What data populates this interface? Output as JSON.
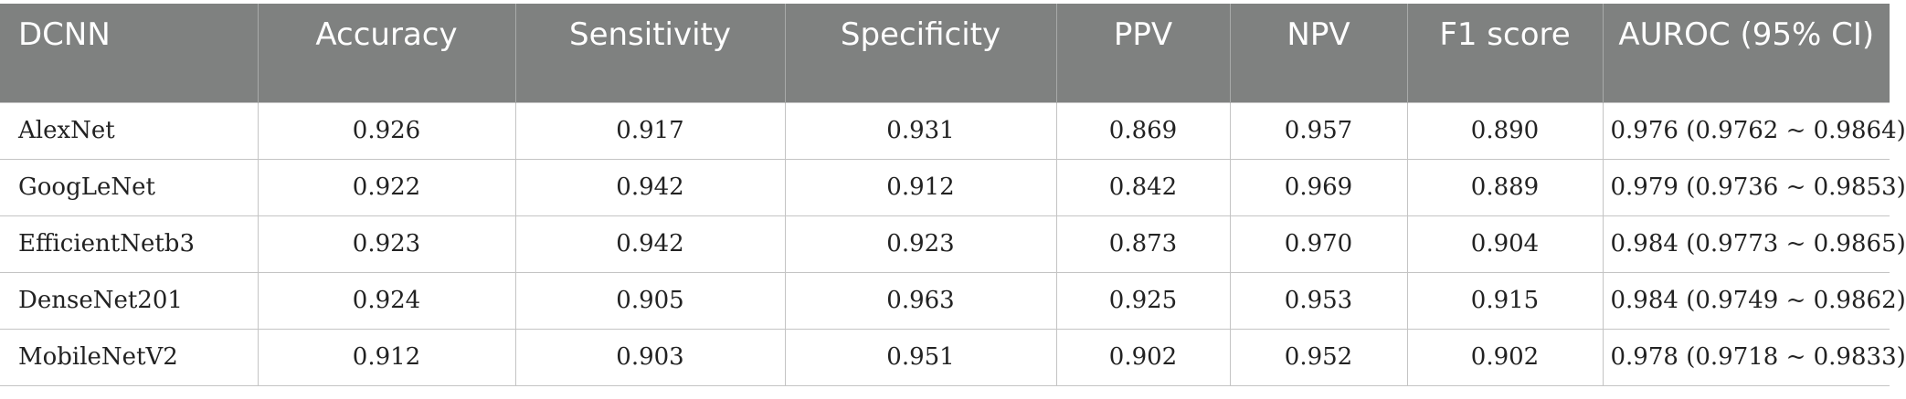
{
  "table": {
    "headers": [
      "DCNN",
      "Accuracy",
      "Sensitivity",
      "Specificity",
      "PPV",
      "NPV",
      "F1 score",
      "AUROC (95% CI)"
    ],
    "rows": [
      [
        "AlexNet",
        "0.926",
        "0.917",
        "0.931",
        "0.869",
        "0.957",
        "0.890",
        "0.976 (0.9762 ~ 0.9864)"
      ],
      [
        "GoogLeNet",
        "0.922",
        "0.942",
        "0.912",
        "0.842",
        "0.969",
        "0.889",
        "0.979 (0.9736 ~ 0.9853)"
      ],
      [
        "EfficientNetb3",
        "0.923",
        "0.942",
        "0.923",
        "0.873",
        "0.970",
        "0.904",
        "0.984 (0.9773 ~ 0.9865)"
      ],
      [
        "DenseNet201",
        "0.924",
        "0.905",
        "0.963",
        "0.925",
        "0.953",
        "0.915",
        "0.984 (0.9749 ~ 0.9862)"
      ],
      [
        "MobileNetV2",
        "0.912",
        "0.903",
        "0.951",
        "0.902",
        "0.952",
        "0.902",
        "0.978 (0.9718 ~ 0.9833)"
      ]
    ]
  },
  "colors": {
    "header_bg": "#7f8180",
    "header_text": "#ffffff",
    "grid": "#c4c4c4"
  }
}
